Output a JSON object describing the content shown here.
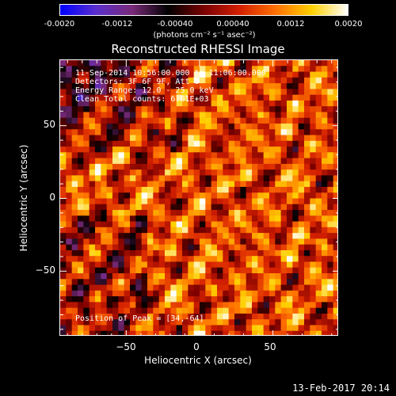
{
  "colorbar": {
    "tick_labels": [
      "-0.0020",
      "-0.0012",
      "-0.00040",
      "0.00040",
      "0.0012",
      "0.0020"
    ],
    "units_label": "(photons cm⁻² s⁻¹ asec⁻²)",
    "colormap": [
      "#0000ff",
      "#5a2ecc",
      "#7a2a7a",
      "#000000",
      "#7a0000",
      "#d52000",
      "#ff7000",
      "#ffd000",
      "#ffffff"
    ]
  },
  "annotations": {
    "line1": "11-Sep-2014 10:56:00.000 to 11:06:00.000",
    "line2": "Detectors: 3F 6F 9F, Att 0",
    "line3": "Energy Range: 12.0 - 25.0 keV",
    "line4": "Clean    Total counts: 6.61E+03",
    "peak": "Position of Peak = [34,-64]"
  },
  "footer": {
    "date": "13-Feb-2017 20:14"
  },
  "chart_data": {
    "type": "heatmap",
    "title": "Reconstructed RHESSI Image",
    "xlabel": "Heliocentric X (arcsec)",
    "ylabel": "Heliocentric Y (arcsec)",
    "xlim": [
      -95,
      95
    ],
    "ylim": [
      -95,
      95
    ],
    "x_ticks": [
      -50,
      0,
      50
    ],
    "y_ticks": [
      50,
      0,
      -50
    ],
    "x_tick_labels": [
      "−50",
      "0",
      "50"
    ],
    "y_tick_labels": [
      "50",
      "0",
      "−50"
    ],
    "value_range": [
      -0.002,
      0.002
    ],
    "peak_position": [
      34,
      -64
    ]
  }
}
